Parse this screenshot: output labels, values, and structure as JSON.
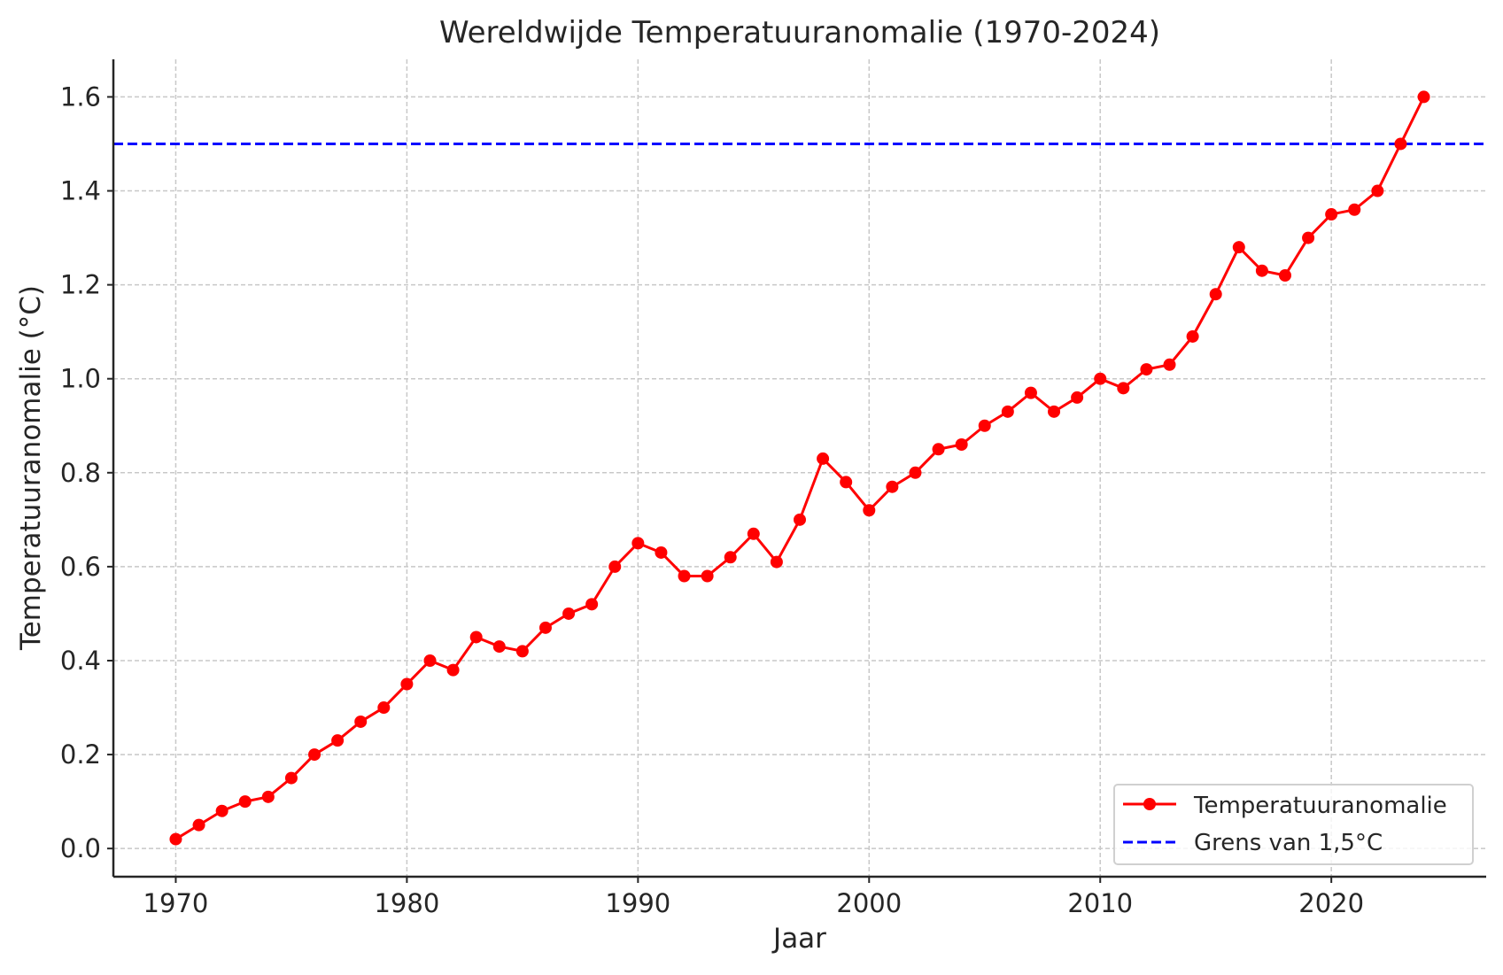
{
  "chart_data": {
    "type": "line",
    "title": "Wereldwijde Temperatuuranomalie (1970-2024)",
    "xlabel": "Jaar",
    "ylabel": "Temperatuuranomalie (°C)",
    "xlim": [
      1967.3,
      2026.7
    ],
    "ylim": [
      -0.06,
      1.68
    ],
    "xticks": [
      1970,
      1980,
      1990,
      2000,
      2010,
      2020
    ],
    "yticks": [
      0.0,
      0.2,
      0.4,
      0.6,
      0.8,
      1.0,
      1.2,
      1.4,
      1.6
    ],
    "ytick_labels": [
      "0.0",
      "0.2",
      "0.4",
      "0.6",
      "0.8",
      "1.0",
      "1.2",
      "1.4",
      "1.6"
    ],
    "grid": true,
    "legend_placement": "lower-right",
    "x": [
      1970,
      1971,
      1972,
      1973,
      1974,
      1975,
      1976,
      1977,
      1978,
      1979,
      1980,
      1981,
      1982,
      1983,
      1984,
      1985,
      1986,
      1987,
      1988,
      1989,
      1990,
      1991,
      1992,
      1993,
      1994,
      1995,
      1996,
      1997,
      1998,
      1999,
      2000,
      2001,
      2002,
      2003,
      2004,
      2005,
      2006,
      2007,
      2008,
      2009,
      2010,
      2011,
      2012,
      2013,
      2014,
      2015,
      2016,
      2017,
      2018,
      2019,
      2020,
      2021,
      2022,
      2023,
      2024
    ],
    "series": [
      {
        "name": "Temperatuuranomalie",
        "color": "#ff0000",
        "marker": "circle",
        "style": "solid",
        "values": [
          0.02,
          0.05,
          0.08,
          0.1,
          0.11,
          0.15,
          0.2,
          0.23,
          0.27,
          0.3,
          0.35,
          0.4,
          0.38,
          0.45,
          0.43,
          0.42,
          0.47,
          0.5,
          0.52,
          0.6,
          0.65,
          0.63,
          0.58,
          0.58,
          0.62,
          0.67,
          0.61,
          0.7,
          0.83,
          0.78,
          0.72,
          0.77,
          0.8,
          0.85,
          0.86,
          0.9,
          0.93,
          0.97,
          0.93,
          0.96,
          1.0,
          0.98,
          1.02,
          1.03,
          1.09,
          1.18,
          1.28,
          1.23,
          1.22,
          1.3,
          1.35,
          1.36,
          1.4,
          1.5,
          1.6
        ]
      }
    ],
    "reference_lines": [
      {
        "name": "Grens van 1,5°C",
        "y": 1.5,
        "color": "#0000ff",
        "style": "dashed"
      }
    ]
  }
}
